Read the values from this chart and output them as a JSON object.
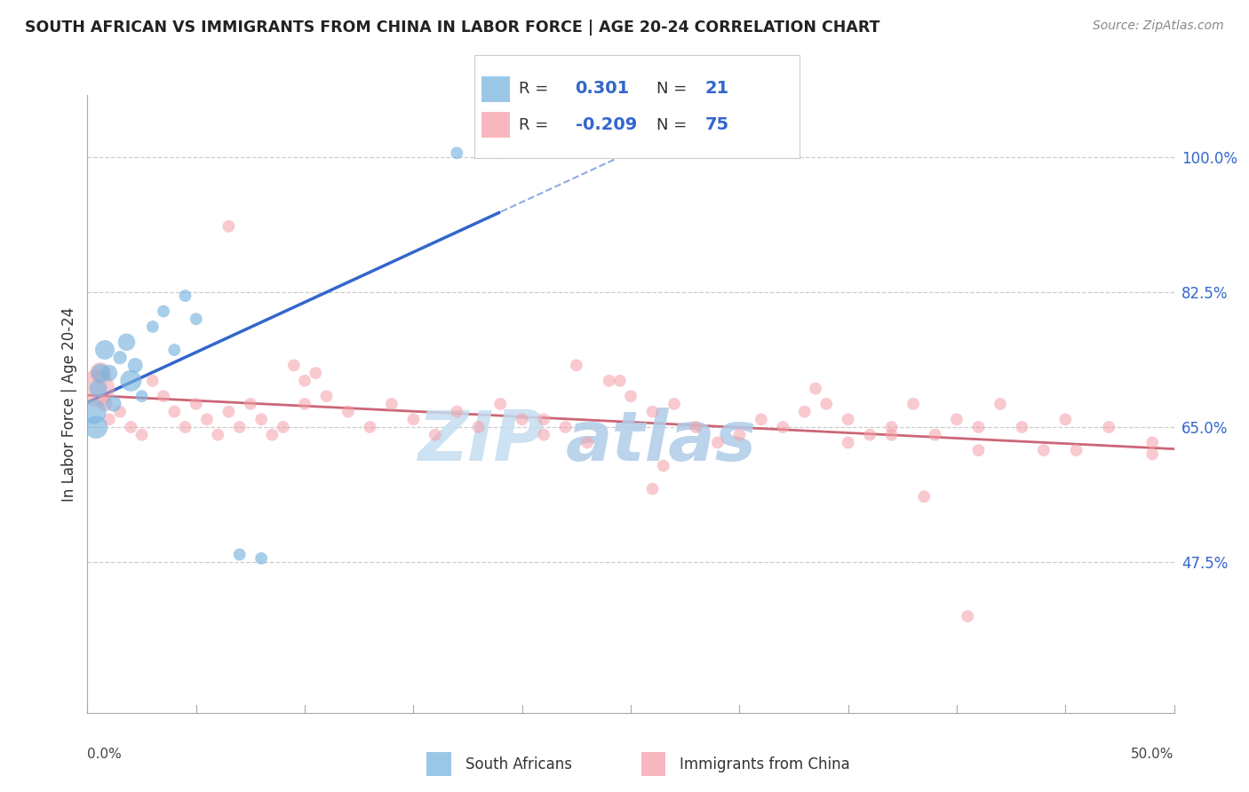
{
  "title": "SOUTH AFRICAN VS IMMIGRANTS FROM CHINA IN LABOR FORCE | AGE 20-24 CORRELATION CHART",
  "source": "Source: ZipAtlas.com",
  "ylabel": "In Labor Force | Age 20-24",
  "xlim": [
    0.0,
    50.0
  ],
  "ylim": [
    28.0,
    108.0
  ],
  "yticks": [
    47.5,
    65.0,
    82.5,
    100.0
  ],
  "ytick_labels": [
    "47.5%",
    "65.0%",
    "82.5%",
    "100.0%"
  ],
  "R_blue": 0.301,
  "N_blue": 21,
  "R_pink": -0.209,
  "N_pink": 75,
  "blue_color": "#7ab5e0",
  "pink_color": "#f4a0a8",
  "blue_line_color": "#3366cc",
  "pink_line_color": "#cc6677",
  "legend_label_blue": "South Africans",
  "legend_label_pink": "Immigrants from China",
  "blue_scatter_x": [
    0.5,
    0.8,
    1.0,
    1.2,
    1.5,
    1.8,
    2.0,
    2.2,
    2.5,
    3.0,
    3.5,
    4.0,
    4.5,
    5.0,
    7.0,
    8.0,
    17.0,
    19.0,
    0.3,
    0.4,
    0.6
  ],
  "blue_scatter_y": [
    70.0,
    75.0,
    72.0,
    68.0,
    74.0,
    76.0,
    71.0,
    73.0,
    69.0,
    78.0,
    80.0,
    75.0,
    82.0,
    79.0,
    48.5,
    48.0,
    100.5,
    100.5,
    67.0,
    65.0,
    72.0
  ],
  "blue_scatter_size": [
    200,
    250,
    180,
    160,
    120,
    200,
    300,
    150,
    100,
    100,
    100,
    100,
    100,
    100,
    100,
    100,
    100,
    100,
    400,
    350,
    220
  ],
  "pink_scatter_x": [
    0.4,
    0.6,
    0.8,
    1.0,
    1.5,
    2.0,
    2.5,
    3.0,
    3.5,
    4.0,
    4.5,
    5.0,
    5.5,
    6.0,
    6.5,
    7.0,
    7.5,
    8.0,
    8.5,
    9.0,
    10.0,
    11.0,
    12.0,
    13.0,
    14.0,
    15.0,
    16.0,
    17.0,
    18.0,
    19.0,
    20.0,
    21.0,
    22.0,
    23.0,
    24.0,
    25.0,
    26.0,
    27.0,
    28.0,
    29.0,
    30.0,
    31.0,
    32.0,
    33.0,
    34.0,
    35.0,
    36.0,
    37.0,
    38.0,
    39.0,
    40.0,
    41.0,
    42.0,
    44.0,
    45.0,
    47.0,
    49.0,
    6.5,
    9.5,
    10.5,
    22.5,
    24.5,
    33.5,
    38.5,
    26.5,
    40.5,
    26.0,
    45.5,
    49.0,
    10.0,
    21.0,
    35.0,
    37.0,
    41.0,
    43.0
  ],
  "pink_scatter_y": [
    70.0,
    72.0,
    68.0,
    66.0,
    67.0,
    65.0,
    64.0,
    71.0,
    69.0,
    67.0,
    65.0,
    68.0,
    66.0,
    64.0,
    67.0,
    65.0,
    68.0,
    66.0,
    64.0,
    65.0,
    71.0,
    69.0,
    67.0,
    65.0,
    68.0,
    66.0,
    64.0,
    67.0,
    65.0,
    68.0,
    66.0,
    64.0,
    65.0,
    63.0,
    71.0,
    69.0,
    67.0,
    68.0,
    65.0,
    63.0,
    64.0,
    66.0,
    65.0,
    67.0,
    68.0,
    66.0,
    64.0,
    65.0,
    68.0,
    64.0,
    66.0,
    65.0,
    68.0,
    62.0,
    66.0,
    65.0,
    63.0,
    91.0,
    73.0,
    72.0,
    73.0,
    71.0,
    70.0,
    56.0,
    60.0,
    40.5,
    57.0,
    62.0,
    61.5,
    68.0,
    66.0,
    63.0,
    64.0,
    62.0,
    65.0
  ],
  "pink_scatter_size": [
    900,
    300,
    150,
    100,
    100,
    100,
    100,
    100,
    100,
    100,
    100,
    100,
    100,
    100,
    100,
    100,
    100,
    100,
    100,
    100,
    100,
    100,
    100,
    100,
    100,
    100,
    100,
    100,
    100,
    100,
    100,
    100,
    100,
    100,
    100,
    100,
    100,
    100,
    100,
    100,
    100,
    100,
    100,
    100,
    100,
    100,
    100,
    100,
    100,
    100,
    100,
    100,
    100,
    100,
    100,
    100,
    100,
    100,
    100,
    100,
    100,
    100,
    100,
    100,
    100,
    100,
    100,
    100,
    100,
    100,
    100,
    100,
    100,
    100,
    100
  ]
}
